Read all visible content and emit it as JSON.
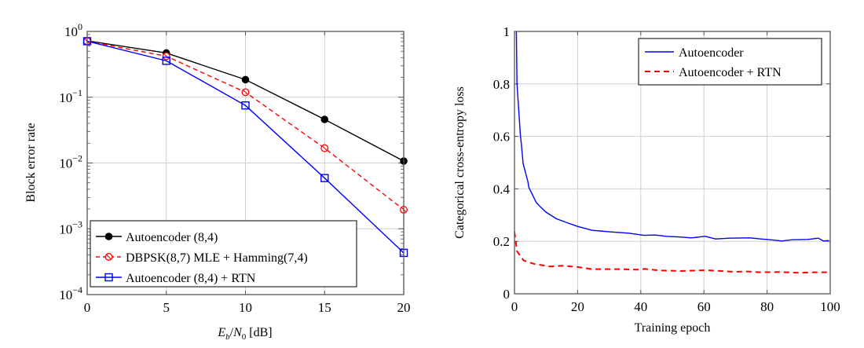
{
  "chart_data": [
    {
      "type": "line",
      "id": "bler",
      "title": "",
      "xlabel": "E_b/N_0 [dB]",
      "xlabel_parts": {
        "E": "E",
        "b": "b",
        "slash": "/",
        "N": "N",
        "zero": "0",
        "unit": "[dB]"
      },
      "ylabel": "Block error rate",
      "xscale": "linear",
      "yscale": "log",
      "xlim": [
        0,
        20
      ],
      "ylim": [
        0.0001,
        1
      ],
      "grid": true,
      "x_ticks": [
        0,
        5,
        10,
        15,
        20
      ],
      "x_tick_labels": [
        "0",
        "5",
        "10",
        "15",
        "20"
      ],
      "y_ticks": [
        1,
        0.1,
        0.01,
        0.001,
        0.0001
      ],
      "y_tick_labels": [
        {
          "base": "10",
          "exp": "0"
        },
        {
          "base": "10",
          "exp": "−1"
        },
        {
          "base": "10",
          "exp": "−2"
        },
        {
          "base": "10",
          "exp": "−3"
        },
        {
          "base": "10",
          "exp": "−4"
        }
      ],
      "legend_position": "bottom-left",
      "x": [
        0,
        5,
        10,
        15,
        20
      ],
      "series": [
        {
          "name": "Autoencoder (8,4)",
          "color": "#000000",
          "dash": "solid",
          "marker": "filled-circle",
          "values": [
            0.72,
            0.47,
            0.185,
            0.046,
            0.0107
          ]
        },
        {
          "name": "DBPSK(8,7) MLE + Hamming(7,4)",
          "color": "#ff0000",
          "dash": "dashed",
          "marker": "open-circle-slash",
          "values": [
            0.71,
            0.42,
            0.119,
            0.0168,
            0.00195
          ]
        },
        {
          "name": "Autoencoder (8,4) + RTN",
          "color": "#0000ff",
          "dash": "solid",
          "marker": "open-square",
          "values": [
            0.71,
            0.358,
            0.075,
            0.0059,
            0.00043
          ]
        }
      ]
    },
    {
      "type": "line",
      "id": "loss",
      "title": "",
      "xlabel": "Training epoch",
      "ylabel": "Categorical cross-entropy loss",
      "xscale": "linear",
      "yscale": "linear",
      "xlim": [
        0,
        100
      ],
      "ylim": [
        0,
        1
      ],
      "grid": true,
      "x_ticks": [
        0,
        20,
        40,
        60,
        80,
        100
      ],
      "x_tick_labels": [
        "0",
        "20",
        "40",
        "60",
        "80",
        "100"
      ],
      "y_ticks": [
        0,
        0.2,
        0.4,
        0.6,
        0.8,
        1
      ],
      "y_tick_labels": [
        "0",
        "0.2",
        "0.4",
        "0.6",
        "0.8",
        "1"
      ],
      "legend_position": "top-right",
      "series": [
        {
          "name": "Autoencoder",
          "color": "#0000ff",
          "dash": "solid",
          "x": [
            0.6,
            0.8,
            1.9,
            2.1,
            2.75,
            4.2,
            4.6,
            6.9,
            8,
            10,
            13.3,
            17.1,
            20,
            24.6,
            30.4,
            36.2,
            41,
            44.6,
            48,
            52.9,
            56,
            60.4,
            63.7,
            68,
            74.6,
            78,
            82,
            84.6,
            88,
            92.9,
            96.2,
            97.9,
            99.6
          ],
          "values": [
            1.0,
            0.8,
            0.6,
            0.58,
            0.496,
            0.43,
            0.404,
            0.348,
            0.334,
            0.311,
            0.286,
            0.269,
            0.257,
            0.242,
            0.236,
            0.231,
            0.223,
            0.224,
            0.219,
            0.216,
            0.213,
            0.219,
            0.209,
            0.212,
            0.213,
            0.209,
            0.205,
            0.201,
            0.206,
            0.207,
            0.212,
            0.201,
            0.203
          ]
        },
        {
          "name": "Autoencoder + RTN",
          "color": "#ff0000",
          "dash": "dashed",
          "x": [
            0,
            0.8,
            2.9,
            6.2,
            11.2,
            15.4,
            20,
            24.6,
            33,
            39.6,
            41.2,
            46,
            52.9,
            60.4,
            69.6,
            74,
            77.9,
            84,
            90.4,
            95,
            99.6
          ],
          "values": [
            0.236,
            0.162,
            0.127,
            0.114,
            0.104,
            0.107,
            0.102,
            0.094,
            0.094,
            0.092,
            0.095,
            0.089,
            0.087,
            0.09,
            0.084,
            0.085,
            0.082,
            0.083,
            0.08,
            0.082,
            0.082
          ]
        }
      ]
    }
  ]
}
